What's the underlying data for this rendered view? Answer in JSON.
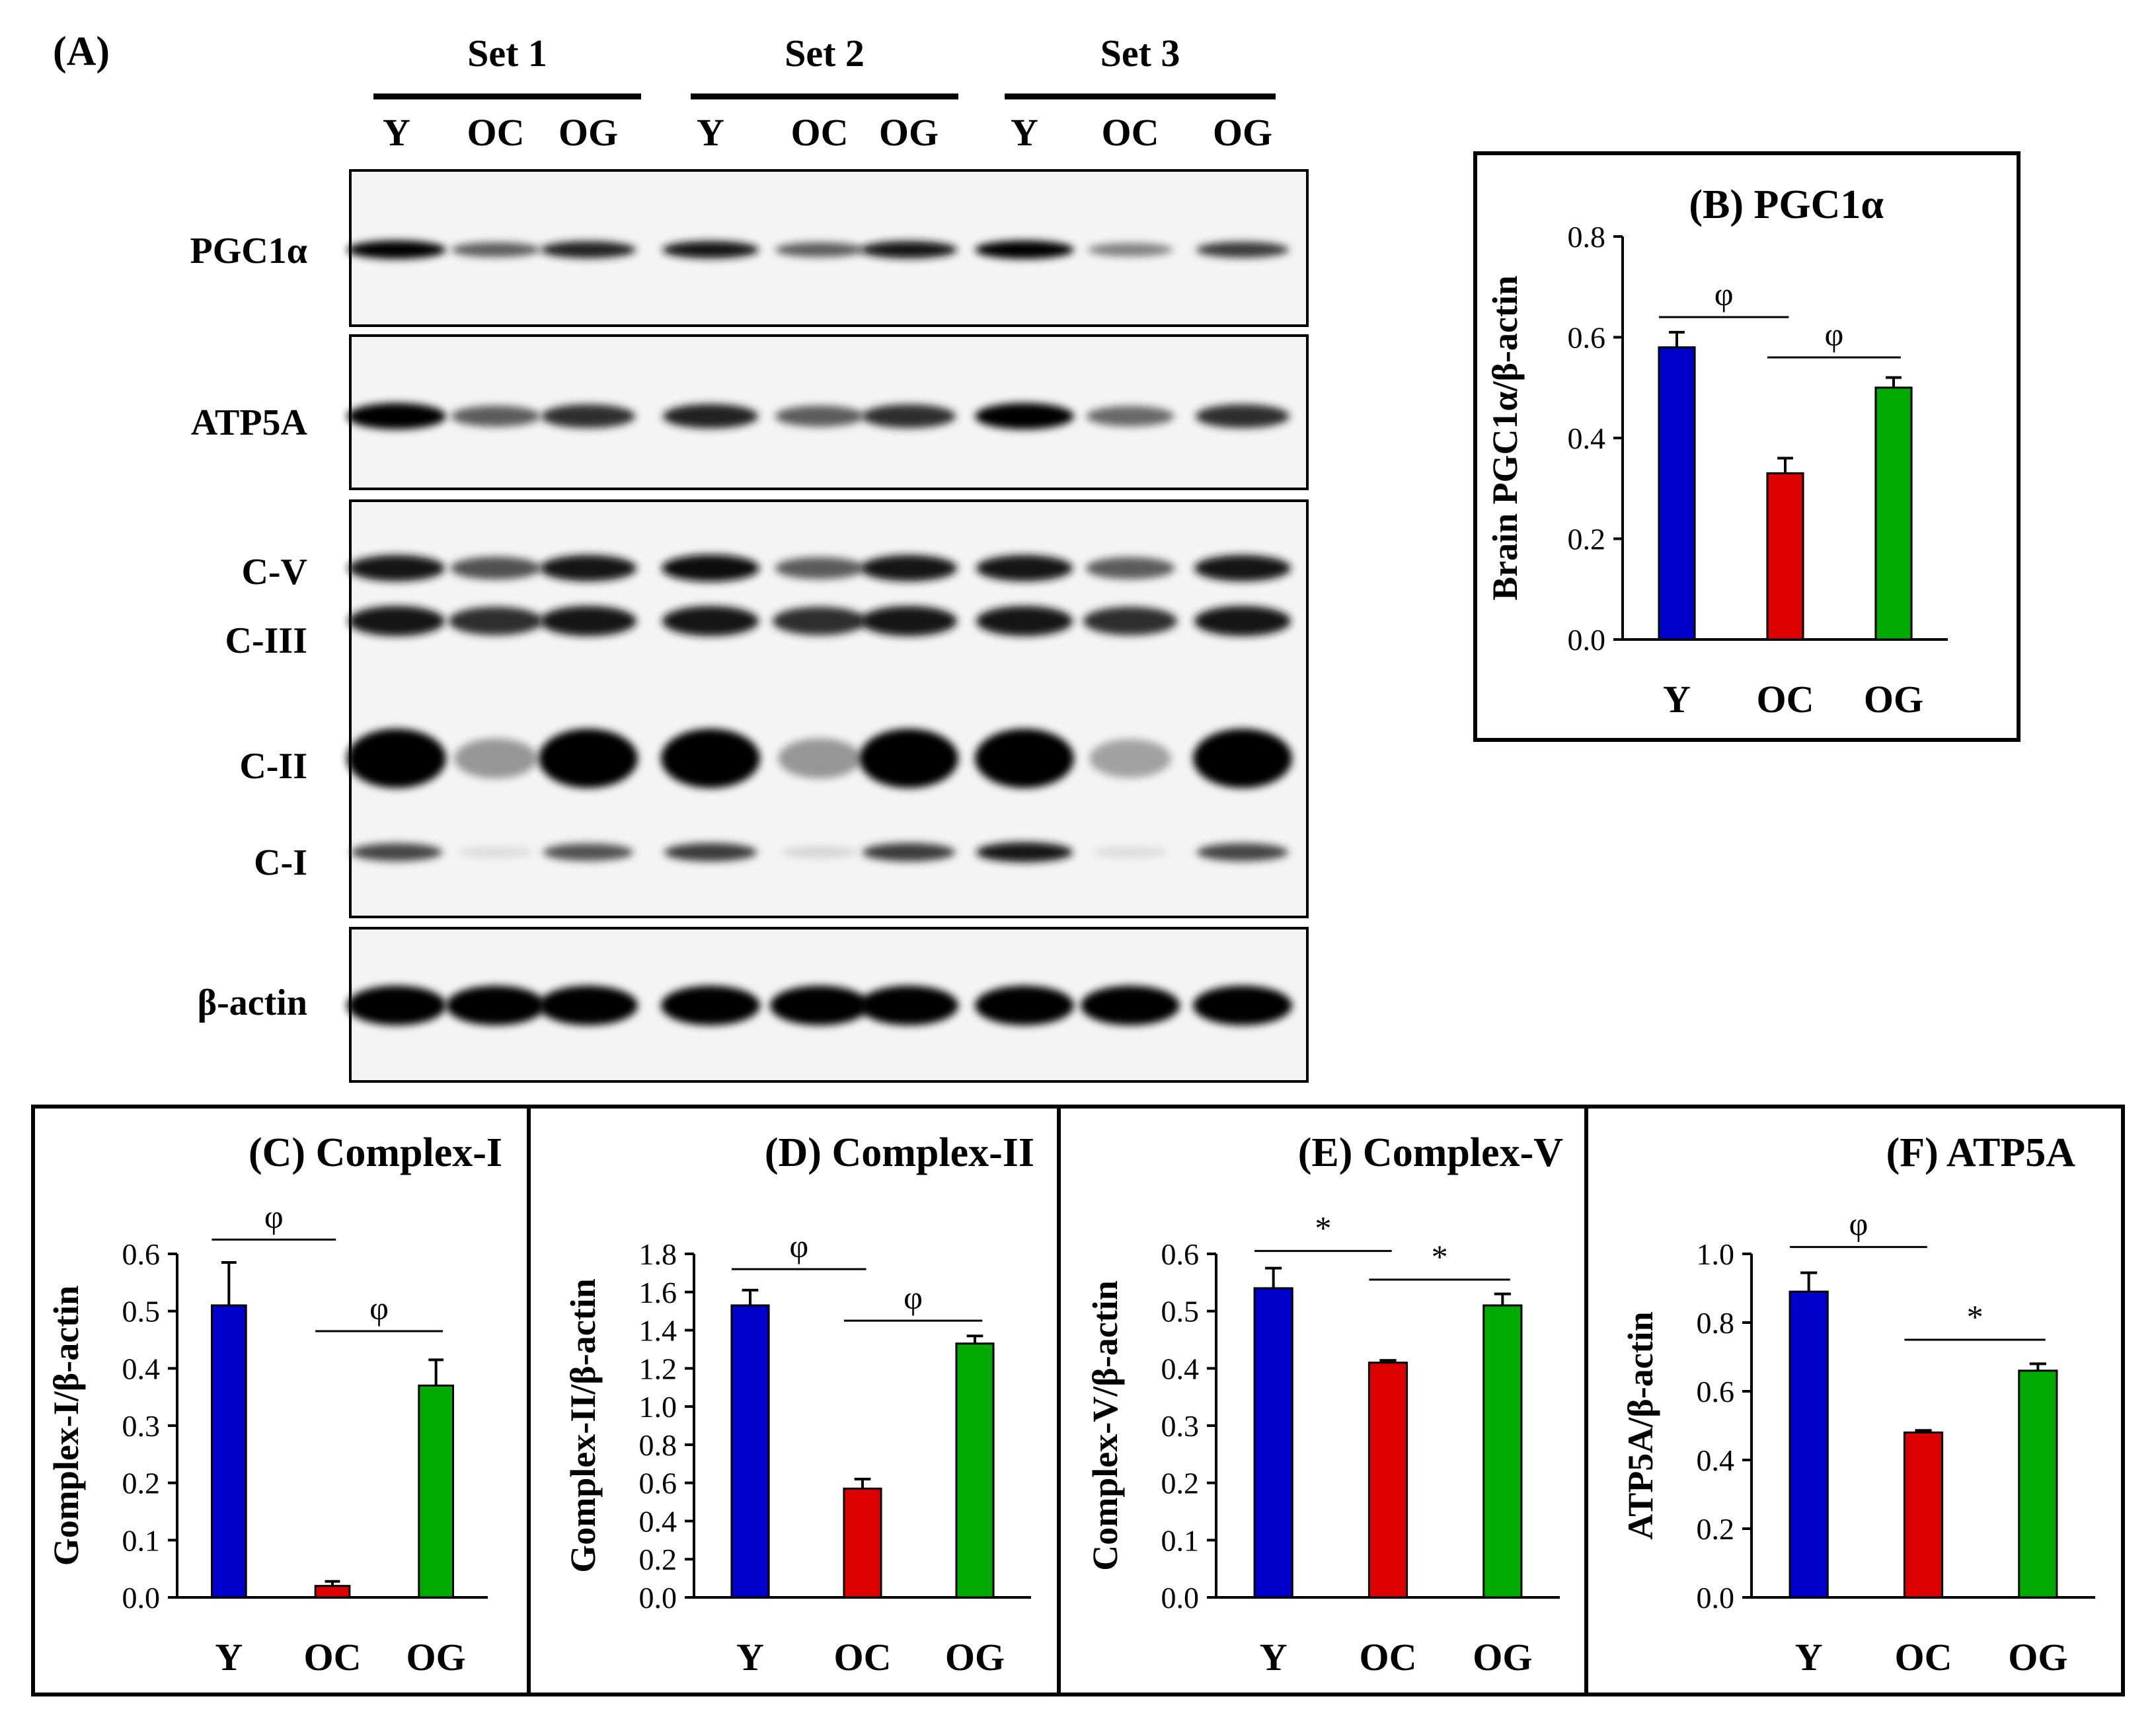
{
  "figure": {
    "panel_a": {
      "label": "(A)",
      "sets": [
        "Set 1",
        "Set 2",
        "Set 3"
      ],
      "lanes": [
        "Y",
        "OC",
        "OG"
      ],
      "blots": [
        {
          "label": "PGC1α",
          "bands": [
            [
              1.0,
              0.6,
              0.85
            ],
            [
              0.9,
              0.6,
              0.9
            ],
            [
              1.0,
              0.45,
              0.75
            ]
          ]
        },
        {
          "label": "ATP5A",
          "bands": [
            [
              1.0,
              0.6,
              0.8
            ],
            [
              0.85,
              0.6,
              0.8
            ],
            [
              1.0,
              0.55,
              0.8
            ]
          ]
        },
        {
          "label": "C-V",
          "bands": [
            [
              0.9,
              0.65,
              0.9
            ],
            [
              0.95,
              0.6,
              0.9
            ],
            [
              0.9,
              0.6,
              0.9
            ]
          ]
        },
        {
          "label": "C-III",
          "bands": [
            [
              0.9,
              0.8,
              0.9
            ],
            [
              0.9,
              0.8,
              0.9
            ],
            [
              0.9,
              0.8,
              0.9
            ]
          ]
        },
        {
          "label": "C-II",
          "bands": [
            [
              1.0,
              0.35,
              1.0
            ],
            [
              1.0,
              0.35,
              1.0
            ],
            [
              1.0,
              0.3,
              1.0
            ]
          ]
        },
        {
          "label": "C-I",
          "bands": [
            [
              0.7,
              0.05,
              0.65
            ],
            [
              0.75,
              0.08,
              0.75
            ],
            [
              0.9,
              0.05,
              0.7
            ]
          ]
        },
        {
          "label": "β-actin",
          "bands": [
            [
              1.0,
              1.0,
              1.0
            ],
            [
              1.0,
              1.0,
              1.0
            ],
            [
              1.0,
              1.0,
              1.0
            ]
          ]
        }
      ]
    }
  },
  "colors": {
    "Y": "#0000CC",
    "OC": "#DD0000",
    "OG": "#00AA00"
  },
  "chart_data": [
    {
      "id": "B",
      "type": "bar",
      "title": "(B) PGC1α",
      "xlabel": "",
      "ylabel": "Brain PGC1α/β-actin",
      "categories": [
        "Y",
        "OC",
        "OG"
      ],
      "values": [
        0.58,
        0.33,
        0.5
      ],
      "errors": [
        0.03,
        0.03,
        0.02
      ],
      "ylim": [
        0,
        0.8
      ],
      "yticks": [
        "0.0",
        "0.2",
        "0.4",
        "0.6",
        "0.8"
      ],
      "sig": [
        {
          "from": 0,
          "to": 1,
          "y": 0.64,
          "symbol": "φ"
        },
        {
          "from": 1,
          "to": 2,
          "y": 0.56,
          "symbol": "φ"
        }
      ]
    },
    {
      "id": "C",
      "type": "bar",
      "title": "(C) Complex-I",
      "xlabel": "",
      "ylabel": "Gomplex-I/β-actin",
      "categories": [
        "Y",
        "OC",
        "OG"
      ],
      "values": [
        0.51,
        0.02,
        0.37
      ],
      "errors": [
        0.075,
        0.008,
        0.045
      ],
      "ylim": [
        0,
        0.6
      ],
      "yticks": [
        "0.0",
        "0.1",
        "0.2",
        "0.3",
        "0.4",
        "0.5",
        "0.6"
      ],
      "sig": [
        {
          "from": 0,
          "to": 1,
          "y": 0.625,
          "symbol": "φ"
        },
        {
          "from": 1,
          "to": 2,
          "y": 0.465,
          "symbol": "φ"
        }
      ]
    },
    {
      "id": "D",
      "type": "bar",
      "title": "(D) Complex-II",
      "xlabel": "",
      "ylabel": "Gomplex-II/β-actin",
      "categories": [
        "Y",
        "OC",
        "OG"
      ],
      "values": [
        1.53,
        0.57,
        1.33
      ],
      "errors": [
        0.08,
        0.05,
        0.04
      ],
      "ylim": [
        0,
        1.8
      ],
      "yticks": [
        "0.0",
        "0.2",
        "0.4",
        "0.6",
        "0.8",
        "1.0",
        "1.2",
        "1.4",
        "1.6",
        "1.8"
      ],
      "sig": [
        {
          "from": 0,
          "to": 1,
          "y": 1.72,
          "symbol": "φ"
        },
        {
          "from": 1,
          "to": 2,
          "y": 1.45,
          "symbol": "φ"
        }
      ]
    },
    {
      "id": "E",
      "type": "bar",
      "title": "(E) Complex-V",
      "xlabel": "",
      "ylabel": "Complex-V/β-actin",
      "categories": [
        "Y",
        "OC",
        "OG"
      ],
      "values": [
        0.54,
        0.41,
        0.51
      ],
      "errors": [
        0.035,
        0.004,
        0.02
      ],
      "ylim": [
        0,
        0.6
      ],
      "yticks": [
        "0.0",
        "0.1",
        "0.2",
        "0.3",
        "0.4",
        "0.5",
        "0.6"
      ],
      "sig": [
        {
          "from": 0,
          "to": 1,
          "y": 0.605,
          "symbol": "*"
        },
        {
          "from": 1,
          "to": 2,
          "y": 0.555,
          "symbol": "*"
        }
      ]
    },
    {
      "id": "F",
      "type": "bar",
      "title": "(F) ATP5A",
      "xlabel": "",
      "ylabel": "ATP5A/β-actin",
      "categories": [
        "Y",
        "OC",
        "OG"
      ],
      "values": [
        0.89,
        0.48,
        0.66
      ],
      "errors": [
        0.055,
        0.006,
        0.02
      ],
      "ylim": [
        0,
        1.0
      ],
      "yticks": [
        "0.0",
        "0.2",
        "0.4",
        "0.6",
        "0.8",
        "1.0"
      ],
      "sig": [
        {
          "from": 0,
          "to": 1,
          "y": 1.02,
          "symbol": "φ"
        },
        {
          "from": 1,
          "to": 2,
          "y": 0.75,
          "symbol": "*"
        }
      ]
    }
  ]
}
